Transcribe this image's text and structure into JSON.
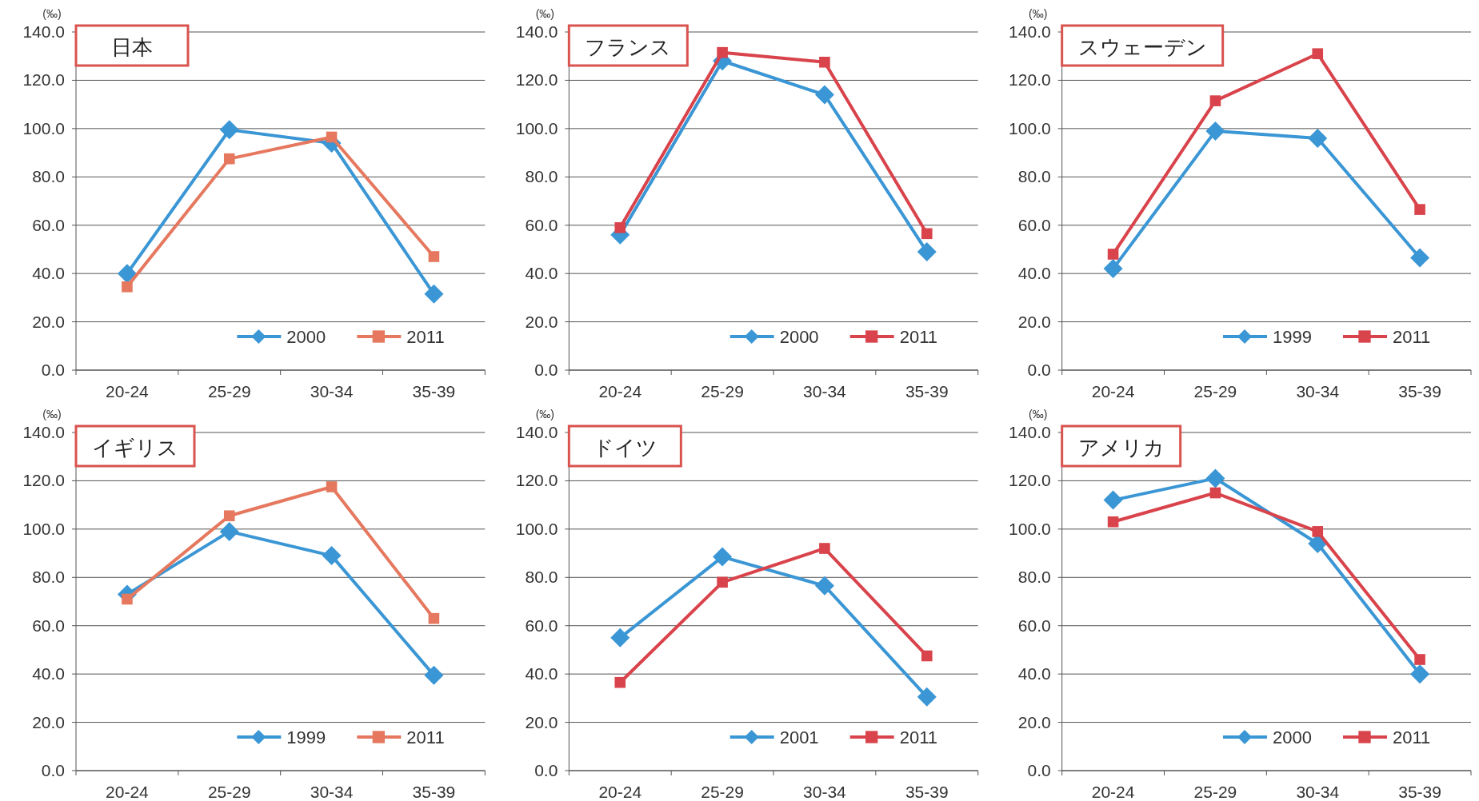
{
  "chart_data": [
    {
      "type": "line",
      "title": "日本",
      "ylabel": "(‰)",
      "categories": [
        "20-24",
        "25-29",
        "30-34",
        "35-39"
      ],
      "ylim": [
        0,
        140
      ],
      "yticks": [
        {
          "value": 0,
          "label": "0.0"
        },
        {
          "value": 20,
          "label": "20.0"
        },
        {
          "value": 40,
          "label": "40.0"
        },
        {
          "value": 60,
          "label": "60.0"
        },
        {
          "value": 80,
          "label": "80.0"
        },
        {
          "value": 100,
          "label": "100.0"
        },
        {
          "value": 120,
          "label": "120.0"
        },
        {
          "value": 140,
          "label": "140.0"
        }
      ],
      "grid": "y",
      "legend": "bottom right",
      "series": [
        {
          "name": "2000",
          "color": "#3a96d4",
          "marker": "diamond",
          "values": [
            40,
            99.5,
            94,
            31.5
          ]
        },
        {
          "name": "2011",
          "color": "#e5785e",
          "marker": "square",
          "values": [
            34.5,
            87.5,
            96.5,
            47
          ]
        }
      ]
    },
    {
      "type": "line",
      "title": "フランス",
      "ylabel": "(‰)",
      "categories": [
        "20-24",
        "25-29",
        "30-34",
        "35-39"
      ],
      "ylim": [
        0,
        140
      ],
      "yticks": [
        {
          "value": 0,
          "label": "0.0"
        },
        {
          "value": 20,
          "label": "20.0"
        },
        {
          "value": 40,
          "label": "40.0"
        },
        {
          "value": 60,
          "label": "60.0"
        },
        {
          "value": 80,
          "label": "80.0"
        },
        {
          "value": 100,
          "label": "100.0"
        },
        {
          "value": 120,
          "label": "120.0"
        },
        {
          "value": 140,
          "label": "140.0"
        }
      ],
      "grid": "y",
      "legend": "bottom right",
      "series": [
        {
          "name": "2000",
          "color": "#3a96d4",
          "marker": "diamond",
          "values": [
            56,
            128,
            114,
            49
          ]
        },
        {
          "name": "2011",
          "color": "#d9434b",
          "marker": "square",
          "values": [
            59,
            131.5,
            127.5,
            56.5
          ]
        }
      ]
    },
    {
      "type": "line",
      "title": "スウェーデン",
      "ylabel": "(‰)",
      "categories": [
        "20-24",
        "25-29",
        "30-34",
        "35-39"
      ],
      "ylim": [
        0,
        140
      ],
      "yticks": [
        {
          "value": 0,
          "label": "0.0"
        },
        {
          "value": 20,
          "label": "20.0"
        },
        {
          "value": 40,
          "label": "40.0"
        },
        {
          "value": 60,
          "label": "60.0"
        },
        {
          "value": 80,
          "label": "80.0"
        },
        {
          "value": 100,
          "label": "100.0"
        },
        {
          "value": 120,
          "label": "120.0"
        },
        {
          "value": 140,
          "label": "140.0"
        }
      ],
      "grid": "y",
      "legend": "bottom right",
      "series": [
        {
          "name": "1999",
          "color": "#3a96d4",
          "marker": "diamond",
          "values": [
            42,
            99,
            96,
            46.5
          ]
        },
        {
          "name": "2011",
          "color": "#d9434b",
          "marker": "square",
          "values": [
            48,
            111.5,
            131,
            66.5
          ]
        }
      ]
    },
    {
      "type": "line",
      "title": "イギリス",
      "ylabel": "(‰)",
      "categories": [
        "20-24",
        "25-29",
        "30-34",
        "35-39"
      ],
      "ylim": [
        0,
        140
      ],
      "yticks": [
        {
          "value": 0,
          "label": "0.0"
        },
        {
          "value": 20,
          "label": "20.0"
        },
        {
          "value": 40,
          "label": "40.0"
        },
        {
          "value": 60,
          "label": "60.0"
        },
        {
          "value": 80,
          "label": "80.0"
        },
        {
          "value": 100,
          "label": "100.0"
        },
        {
          "value": 120,
          "label": "120.0"
        },
        {
          "value": 140,
          "label": "140.0"
        }
      ],
      "grid": "y",
      "legend": "bottom right",
      "series": [
        {
          "name": "1999",
          "color": "#3a96d4",
          "marker": "diamond",
          "values": [
            73,
            99,
            89,
            39.5
          ]
        },
        {
          "name": "2011",
          "color": "#e5785e",
          "marker": "square",
          "values": [
            71,
            105.5,
            117.5,
            63
          ]
        }
      ]
    },
    {
      "type": "line",
      "title": "ドイツ",
      "ylabel": "(‰)",
      "categories": [
        "20-24",
        "25-29",
        "30-34",
        "35-39"
      ],
      "ylim": [
        0,
        140
      ],
      "yticks": [
        {
          "value": 0,
          "label": "0.0"
        },
        {
          "value": 20,
          "label": "20.0"
        },
        {
          "value": 40,
          "label": "40.0"
        },
        {
          "value": 60,
          "label": "60.0"
        },
        {
          "value": 80,
          "label": "80.0"
        },
        {
          "value": 100,
          "label": "100.0"
        },
        {
          "value": 120,
          "label": "120.0"
        },
        {
          "value": 140,
          "label": "140.0"
        }
      ],
      "grid": "y",
      "legend": "bottom right",
      "series": [
        {
          "name": "2001",
          "color": "#3a96d4",
          "marker": "diamond",
          "values": [
            55,
            88.5,
            76.5,
            30.5
          ]
        },
        {
          "name": "2011",
          "color": "#d9434b",
          "marker": "square",
          "values": [
            36.5,
            78,
            92,
            47.5
          ]
        }
      ]
    },
    {
      "type": "line",
      "title": "アメリカ",
      "ylabel": "(‰)",
      "categories": [
        "20-24",
        "25-29",
        "30-34",
        "35-39"
      ],
      "ylim": [
        0,
        140
      ],
      "yticks": [
        {
          "value": 0,
          "label": "0.0"
        },
        {
          "value": 20,
          "label": "20.0"
        },
        {
          "value": 40,
          "label": "40.0"
        },
        {
          "value": 60,
          "label": "60.0"
        },
        {
          "value": 80,
          "label": "80.0"
        },
        {
          "value": 100,
          "label": "100.0"
        },
        {
          "value": 120,
          "label": "120.0"
        },
        {
          "value": 140,
          "label": "140.0"
        }
      ],
      "grid": "y",
      "legend": "bottom right",
      "series": [
        {
          "name": "2000",
          "color": "#3a96d4",
          "marker": "diamond",
          "values": [
            112,
            121,
            94,
            40
          ]
        },
        {
          "name": "2011",
          "color": "#d9434b",
          "marker": "square",
          "values": [
            103,
            115,
            99,
            46
          ]
        }
      ]
    }
  ]
}
